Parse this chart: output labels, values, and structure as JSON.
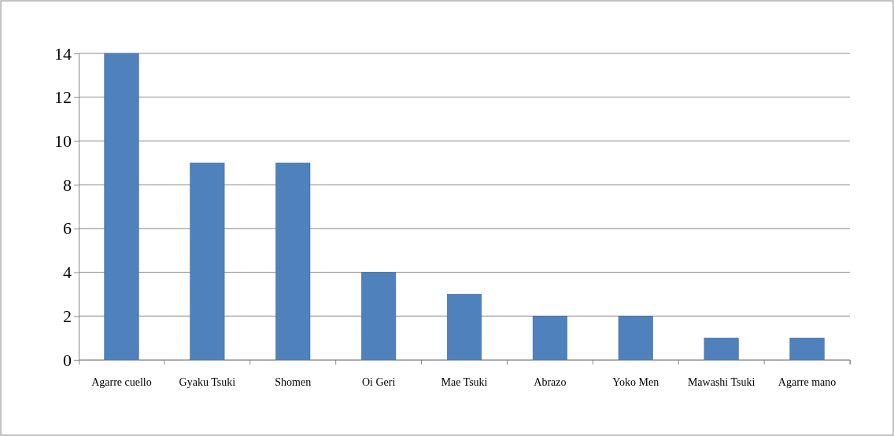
{
  "chart_data": {
    "type": "bar",
    "categories": [
      "Agarre cuello",
      "Gyaku Tsuki",
      "Shomen",
      "Oi Geri",
      "Mae Tsuki",
      "Abrazo",
      "Yoko Men",
      "Mawashi Tsuki",
      "Agarre mano"
    ],
    "values": [
      14,
      9,
      9,
      4,
      3,
      2,
      2,
      1,
      1
    ],
    "color": "#4f81bd",
    "ylim": [
      0,
      14
    ],
    "yticks": [
      0,
      2,
      4,
      6,
      8,
      10,
      12,
      14
    ],
    "grid": "y"
  }
}
